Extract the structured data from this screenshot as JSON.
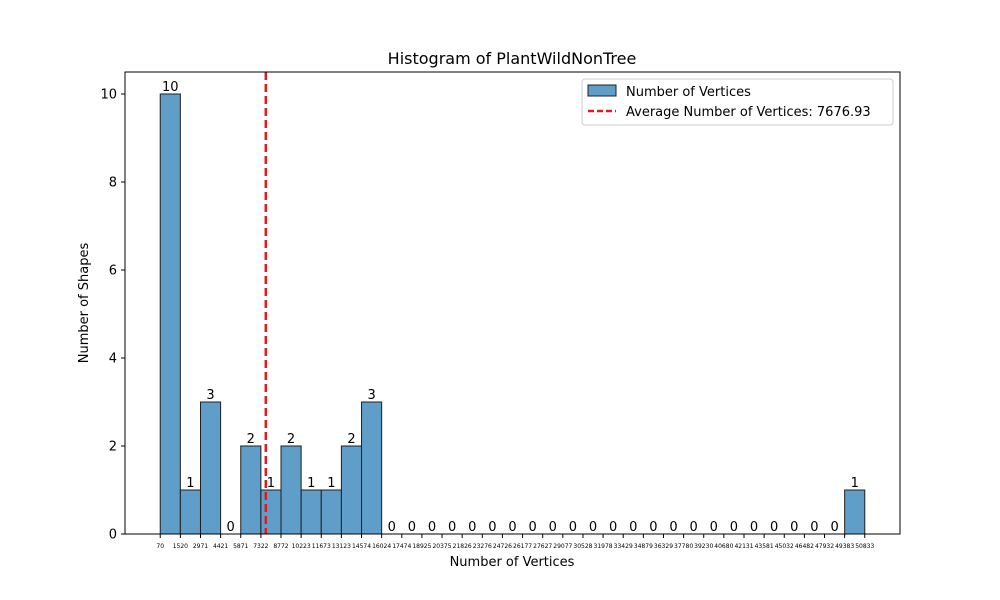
{
  "chart_data": {
    "type": "bar",
    "title": "Histogram of PlantWildNonTree",
    "xlabel": "Number of Vertices",
    "ylabel": "Number of Shapes",
    "ylim": [
      0,
      10.5
    ],
    "yticks": [
      0,
      2,
      4,
      6,
      8,
      10
    ],
    "bin_edges": [
      70,
      1520,
      2971,
      4421,
      5871,
      7322,
      8772,
      10223,
      11673,
      13123,
      14574,
      16024,
      17474,
      18925,
      20375,
      21826,
      23276,
      24726,
      26177,
      27627,
      29077,
      30528,
      31978,
      33429,
      34879,
      36329,
      37780,
      39230,
      40680,
      42131,
      43581,
      45032,
      46482,
      47932,
      49383,
      50833
    ],
    "values": [
      10,
      1,
      3,
      0,
      2,
      1,
      2,
      1,
      1,
      2,
      3,
      0,
      0,
      0,
      0,
      0,
      0,
      0,
      0,
      0,
      0,
      0,
      0,
      0,
      0,
      0,
      0,
      0,
      0,
      0,
      0,
      0,
      0,
      0,
      1
    ],
    "series": [
      {
        "name": "Number of Vertices",
        "color": "#5f9ec8",
        "edge_color": "#1f1f1f"
      }
    ],
    "average": {
      "value": 7676.93,
      "label": "Average Number of Vertices: 7676.93",
      "color": "#e31a1c",
      "style": "dashed"
    },
    "legend_position": "top-right",
    "grid": false
  }
}
